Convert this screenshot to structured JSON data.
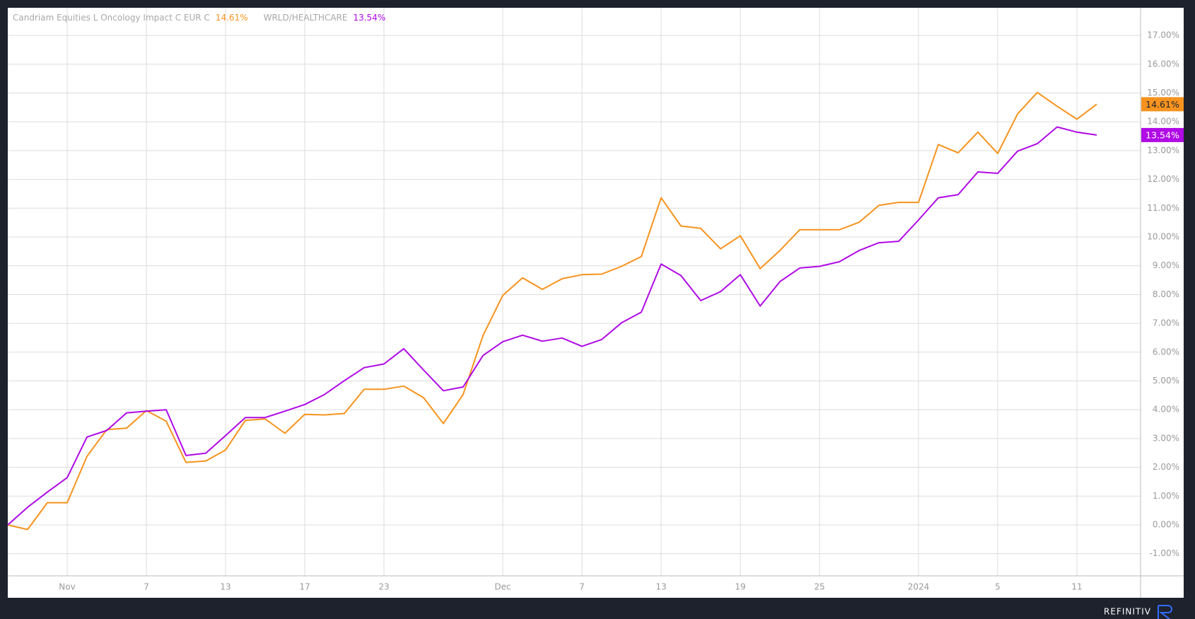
{
  "chart_data": {
    "type": "line",
    "categories": [
      null,
      null,
      null,
      "Nov",
      null,
      null,
      null,
      "7",
      null,
      null,
      null,
      "13",
      null,
      null,
      null,
      "17",
      null,
      null,
      null,
      "23",
      null,
      null,
      null,
      null,
      null,
      "Dec",
      null,
      null,
      null,
      "7",
      null,
      null,
      null,
      "13",
      null,
      null,
      null,
      "19",
      null,
      null,
      null,
      "25",
      null,
      null,
      null,
      null,
      "2024",
      null,
      null,
      null,
      "5",
      null,
      null,
      null,
      "11",
      null
    ],
    "series": [
      {
        "name": "Candriam Equities L Oncology Impact C EUR C",
        "color": "#f7931e",
        "values": [
          0,
          -0.16,
          0.77,
          0.77,
          2.38,
          3.31,
          3.36,
          3.97,
          3.6,
          2.17,
          2.22,
          2.6,
          3.63,
          3.68,
          3.18,
          3.84,
          3.82,
          3.87,
          4.71,
          4.71,
          4.82,
          4.42,
          3.52,
          4.53,
          6.57,
          7.97,
          8.58,
          8.18,
          8.55,
          8.69,
          8.71,
          8.98,
          9.32,
          11.36,
          10.38,
          10.3,
          9.59,
          10.04,
          8.9,
          9.53,
          10.25,
          10.25,
          10.25,
          10.51,
          11.1,
          11.2,
          11.2,
          13.21,
          12.92,
          13.64,
          12.9,
          14.27,
          15.02,
          14.54,
          14.09,
          14.61
        ],
        "value_labels": [
          null,
          null,
          null,
          null,
          null,
          null,
          null,
          null,
          null,
          null,
          null,
          null,
          null,
          null,
          null,
          null,
          null,
          null,
          null,
          null,
          null,
          null,
          null,
          null,
          null,
          null,
          null,
          null,
          null,
          null,
          null,
          null,
          null,
          null,
          null,
          null,
          null,
          null,
          null,
          null,
          null,
          null,
          null,
          null,
          null,
          null,
          null,
          null,
          null,
          null,
          null,
          null,
          null,
          null,
          null,
          "14.61%"
        ]
      },
      {
        "name": "WRLD/HEALTHCARE",
        "color": "#b00ae6",
        "values": [
          0,
          0.61,
          1.14,
          1.64,
          3.05,
          3.28,
          3.89,
          3.95,
          4.0,
          2.41,
          2.49,
          3.1,
          3.73,
          3.73,
          3.95,
          4.18,
          4.53,
          5.01,
          5.46,
          5.59,
          6.12,
          5.38,
          4.66,
          4.79,
          5.88,
          6.36,
          6.59,
          6.38,
          6.49,
          6.2,
          6.44,
          7.02,
          7.39,
          9.06,
          8.66,
          7.79,
          8.1,
          8.69,
          7.6,
          8.45,
          8.92,
          8.98,
          9.14,
          9.53,
          9.8,
          9.85,
          10.59,
          11.36,
          11.47,
          12.26,
          12.21,
          12.98,
          13.24,
          13.82,
          13.64,
          13.54
        ],
        "value_labels": [
          null,
          null,
          null,
          null,
          null,
          null,
          null,
          null,
          null,
          null,
          null,
          null,
          null,
          null,
          null,
          null,
          null,
          null,
          null,
          null,
          null,
          null,
          null,
          null,
          null,
          null,
          null,
          null,
          null,
          null,
          null,
          null,
          null,
          null,
          null,
          null,
          null,
          null,
          null,
          null,
          null,
          null,
          null,
          null,
          null,
          null,
          null,
          null,
          null,
          null,
          null,
          null,
          null,
          null,
          null,
          "13.54%"
        ]
      }
    ],
    "ylim": [
      -1.77,
      17.96
    ],
    "yticks": [
      {
        "value": -1,
        "label": "-1.00%"
      },
      {
        "value": 0,
        "label": "0.00%"
      },
      {
        "value": 1,
        "label": "1.00%"
      },
      {
        "value": 2,
        "label": "2.00%"
      },
      {
        "value": 3,
        "label": "3.00%"
      },
      {
        "value": 4,
        "label": "4.00%"
      },
      {
        "value": 5,
        "label": "5.00%"
      },
      {
        "value": 6,
        "label": "6.00%"
      },
      {
        "value": 7,
        "label": "7.00%"
      },
      {
        "value": 8,
        "label": "8.00%"
      },
      {
        "value": 9,
        "label": "9.00%"
      },
      {
        "value": 10,
        "label": "10.00%"
      },
      {
        "value": 11,
        "label": "11.00%"
      },
      {
        "value": 12,
        "label": "12.00%"
      },
      {
        "value": 13,
        "label": "13.00%"
      },
      {
        "value": 14,
        "label": "14.00%"
      },
      {
        "value": 15,
        "label": "15.00%"
      },
      {
        "value": 16,
        "label": "16.00%"
      },
      {
        "value": 17,
        "label": "17.00%"
      }
    ],
    "grid": true
  },
  "footer": {
    "brand": "REFINITIV"
  }
}
